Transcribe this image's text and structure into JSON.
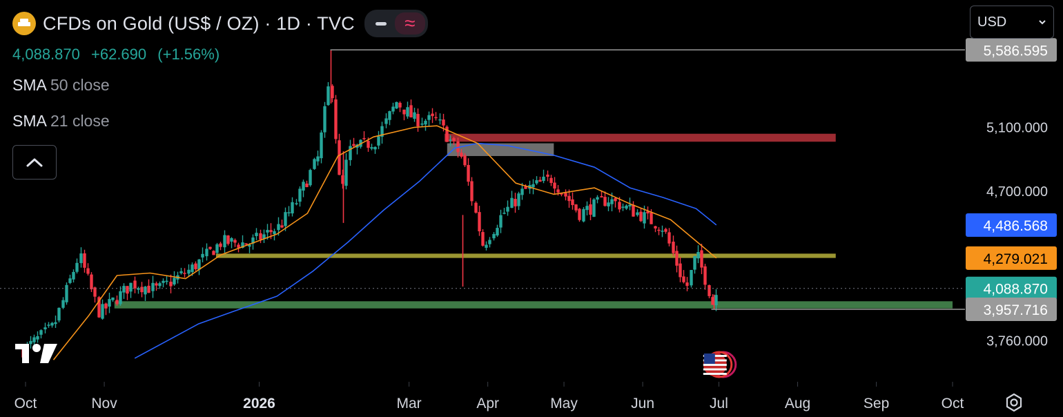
{
  "header": {
    "title": "CFDs on Gold (US$ / OZ) · 1D · TVC",
    "price": "4,088.870",
    "change": "+62.690",
    "change_pct": "(+1.56%)",
    "icons": [
      "gold-logo-icon",
      "line-toggle-icon",
      "wave-toggle-icon"
    ]
  },
  "indicators": [
    {
      "name": "SMA",
      "params": "50 close"
    },
    {
      "name": "SMA",
      "params": "21 close"
    }
  ],
  "currency": {
    "selected": "USD"
  },
  "colors": {
    "up": "#26a69a",
    "down": "#f23645",
    "sma50": "#2962ff",
    "sma21": "#f7931a",
    "zone_red": "#9c2b32",
    "zone_gray": "#6e6e6e",
    "zone_yellow": "#9b9632",
    "zone_green": "#3f7a47"
  },
  "chart_data": {
    "type": "candlestick",
    "title": "CFDs on Gold (US$ / OZ) · 1D · TVC",
    "x_ticks": [
      "Oct",
      "Nov",
      "2026",
      "Mar",
      "Apr",
      "May",
      "Jun",
      "Jul",
      "Aug",
      "Sep",
      "Oct"
    ],
    "y_ticks": [
      "5,100.000",
      "4,700.000",
      "3,760.000"
    ],
    "ylim": [
      3640,
      5700
    ],
    "price_labels": [
      {
        "value": 5586.595,
        "text": "5,586.595",
        "color": "#9a9a9a",
        "role": "high"
      },
      {
        "value": 4486.568,
        "text": "4,486.568",
        "color": "#2962ff",
        "role": "sma50"
      },
      {
        "value": 4279.021,
        "text": "4,279.021",
        "color": "#f7931a",
        "role": "sma21"
      },
      {
        "value": 4088.87,
        "text": "4,088.870",
        "color": "#26a69a",
        "role": "last"
      },
      {
        "value": 3957.716,
        "text": "3,957.716",
        "color": "#9a9a9a",
        "role": "low"
      }
    ],
    "zones": [
      {
        "color": "#9c2b32",
        "y_top": 5060,
        "y_bottom": 5010,
        "x_start": "2026-03-15",
        "x_end": "2026-08-16"
      },
      {
        "color": "#6e6e6e",
        "y_top": 5000,
        "y_bottom": 4920,
        "x_start": "2026-03-16",
        "x_end": "2026-04-27"
      },
      {
        "color": "#9b9632",
        "y_top": 4307,
        "y_bottom": 4280,
        "x_start": "2025-12-15",
        "x_end": "2026-08-16"
      },
      {
        "color": "#3f7a47",
        "y_top": 4008,
        "y_bottom": 3963,
        "x_start": "2025-11-05",
        "x_end": "2026-10-01"
      }
    ],
    "sma50": [
      {
        "x": "2025-11-13",
        "y": 3650
      },
      {
        "x": "2025-11-27",
        "y": 3770
      },
      {
        "x": "2025-12-08",
        "y": 3865
      },
      {
        "x": "2025-12-22",
        "y": 3945
      },
      {
        "x": "2026-01-08",
        "y": 4040
      },
      {
        "x": "2026-01-22",
        "y": 4195
      },
      {
        "x": "2026-02-05",
        "y": 4380
      },
      {
        "x": "2026-02-19",
        "y": 4580
      },
      {
        "x": "2026-03-05",
        "y": 4760
      },
      {
        "x": "2026-03-19",
        "y": 4970
      },
      {
        "x": "2026-03-28",
        "y": 5000
      },
      {
        "x": "2026-04-09",
        "y": 4985
      },
      {
        "x": "2026-04-27",
        "y": 4925
      },
      {
        "x": "2026-05-13",
        "y": 4850
      },
      {
        "x": "2026-05-27",
        "y": 4720
      },
      {
        "x": "2026-06-09",
        "y": 4660
      },
      {
        "x": "2026-06-22",
        "y": 4590
      },
      {
        "x": "2026-06-30",
        "y": 4487
      }
    ],
    "sma21": [
      {
        "x": "2025-10-12",
        "y": 3640
      },
      {
        "x": "2025-10-26",
        "y": 3920
      },
      {
        "x": "2025-11-06",
        "y": 4170
      },
      {
        "x": "2025-11-19",
        "y": 4185
      },
      {
        "x": "2025-12-03",
        "y": 4150
      },
      {
        "x": "2025-12-17",
        "y": 4300
      },
      {
        "x": "2026-01-08",
        "y": 4430
      },
      {
        "x": "2026-01-20",
        "y": 4560
      },
      {
        "x": "2026-02-01",
        "y": 4920
      },
      {
        "x": "2026-02-15",
        "y": 5040
      },
      {
        "x": "2026-03-03",
        "y": 5100
      },
      {
        "x": "2026-03-12",
        "y": 5110
      },
      {
        "x": "2026-03-28",
        "y": 5000
      },
      {
        "x": "2026-04-12",
        "y": 4750
      },
      {
        "x": "2026-04-27",
        "y": 4680
      },
      {
        "x": "2026-05-13",
        "y": 4720
      },
      {
        "x": "2026-05-27",
        "y": 4620
      },
      {
        "x": "2026-06-12",
        "y": 4520
      },
      {
        "x": "2026-06-24",
        "y": 4360
      },
      {
        "x": "2026-06-30",
        "y": 4279
      }
    ],
    "candles_path": [
      {
        "x": "2025-09-30",
        "y": 3700
      },
      {
        "x": "2025-10-12",
        "y": 3850
      },
      {
        "x": "2025-10-22",
        "y": 4300
      },
      {
        "x": "2025-10-30",
        "y": 3930
      },
      {
        "x": "2025-11-12",
        "y": 4120
      },
      {
        "x": "2025-11-22",
        "y": 4080
      },
      {
        "x": "2025-12-05",
        "y": 4210
      },
      {
        "x": "2025-12-17",
        "y": 4380
      },
      {
        "x": "2025-12-28",
        "y": 4370
      },
      {
        "x": "2026-01-09",
        "y": 4480
      },
      {
        "x": "2026-01-15",
        "y": 4620
      },
      {
        "x": "2026-01-24",
        "y": 4910
      },
      {
        "x": "2026-01-29",
        "y": 5430
      },
      {
        "x": "2026-02-02",
        "y": 4650
      },
      {
        "x": "2026-02-05",
        "y": 4950
      },
      {
        "x": "2026-02-16",
        "y": 5020
      },
      {
        "x": "2026-02-24",
        "y": 5260
      },
      {
        "x": "2026-03-03",
        "y": 5150
      },
      {
        "x": "2026-03-12",
        "y": 5140
      },
      {
        "x": "2026-03-22",
        "y": 4900
      },
      {
        "x": "2026-03-30",
        "y": 4360
      },
      {
        "x": "2026-04-06",
        "y": 4540
      },
      {
        "x": "2026-04-15",
        "y": 4700
      },
      {
        "x": "2026-04-26",
        "y": 4780
      },
      {
        "x": "2026-05-07",
        "y": 4560
      },
      {
        "x": "2026-05-18",
        "y": 4650
      },
      {
        "x": "2026-05-30",
        "y": 4560
      },
      {
        "x": "2026-06-09",
        "y": 4470
      },
      {
        "x": "2026-06-18",
        "y": 4080
      },
      {
        "x": "2026-06-22",
        "y": 4310
      },
      {
        "x": "2026-06-26",
        "y": 4130
      },
      {
        "x": "2026-06-29",
        "y": 3960
      },
      {
        "x": "2026-06-30",
        "y": 4088
      }
    ]
  }
}
